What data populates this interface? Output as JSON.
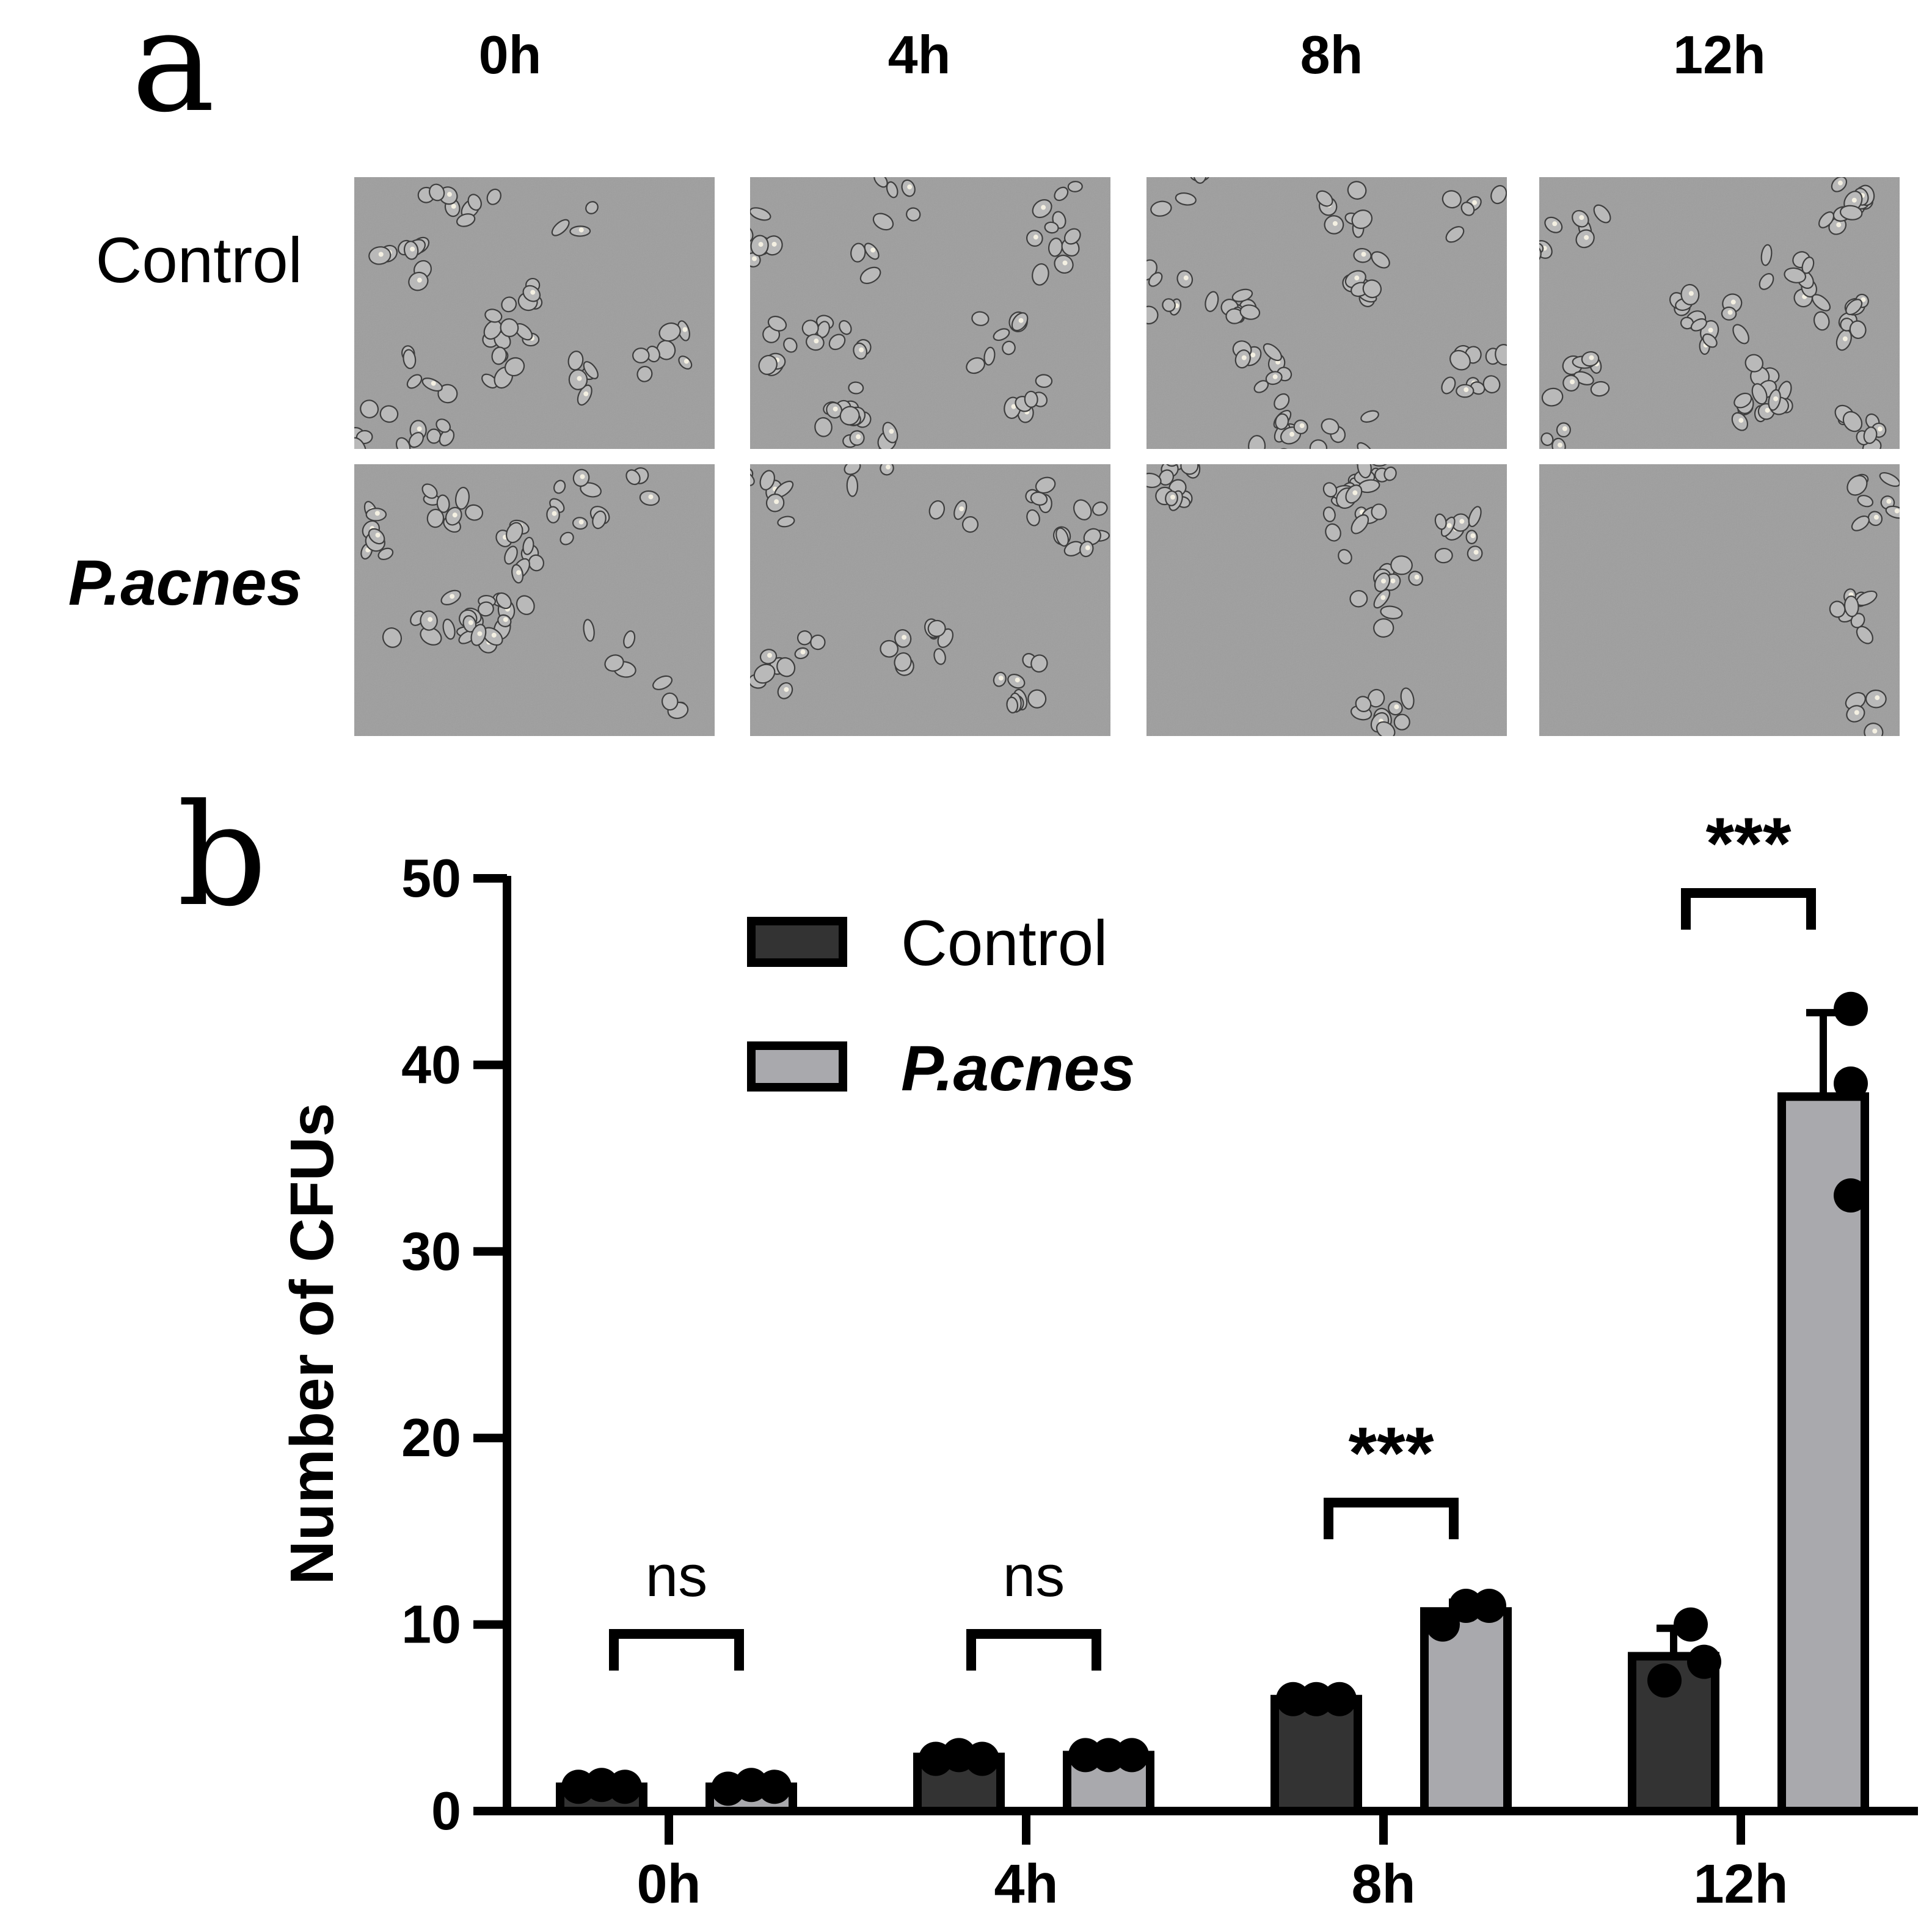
{
  "panel_a": {
    "letter": "a",
    "time_labels": [
      "0h",
      "4h",
      "8h",
      "12h"
    ],
    "row_labels": [
      "Control",
      "P.acnes"
    ],
    "micrographs": [
      {
        "row": "Control",
        "time": "0h",
        "cell_density": 0.55
      },
      {
        "row": "Control",
        "time": "4h",
        "cell_density": 0.55
      },
      {
        "row": "Control",
        "time": "8h",
        "cell_density": 0.55
      },
      {
        "row": "Control",
        "time": "12h",
        "cell_density": 0.65
      },
      {
        "row": "P.acnes",
        "time": "0h",
        "cell_density": 0.55
      },
      {
        "row": "P.acnes",
        "time": "4h",
        "cell_density": 0.45
      },
      {
        "row": "P.acnes",
        "time": "8h",
        "cell_density": 0.45
      },
      {
        "row": "P.acnes",
        "time": "12h",
        "cell_density": 0.12
      }
    ]
  },
  "panel_b": {
    "letter": "b"
  },
  "chart_data": {
    "type": "bar",
    "title": "",
    "xlabel": "",
    "ylabel": "Number of CFUs",
    "ylim": [
      0,
      50
    ],
    "yticks": [
      0,
      10,
      20,
      30,
      40,
      50
    ],
    "categories": [
      "0h",
      "4h",
      "8h",
      "12h"
    ],
    "legend_placement": "top-center",
    "grid": false,
    "series": [
      {
        "name": "Control",
        "color": "#333333",
        "values": [
          1.3,
          2.9,
          6.0,
          8.3
        ],
        "errors": [
          0.2,
          0.2,
          0.1,
          1.5
        ],
        "points": [
          [
            1.3,
            1.4,
            1.3
          ],
          [
            2.8,
            3.0,
            2.8
          ],
          [
            6.0,
            6.0,
            6.0
          ],
          [
            7.0,
            10.0,
            8.0
          ]
        ]
      },
      {
        "name": "P.acnes",
        "color": "#a9a9ad",
        "values": [
          1.3,
          3.0,
          10.7,
          38.3
        ],
        "errors": [
          0.2,
          0.1,
          0.5,
          4.5
        ],
        "points": [
          [
            1.2,
            1.4,
            1.3
          ],
          [
            3.0,
            3.0,
            3.0
          ],
          [
            10.0,
            11.0,
            11.0
          ],
          [
            33.0,
            39.0,
            43.0
          ]
        ]
      }
    ],
    "annotations": [
      "ns",
      "ns",
      "***",
      "***"
    ]
  },
  "colors": {
    "dark_bar": "#333333",
    "light_bar": "#a9a9ad",
    "micrograph_bg": "#9d9d9d"
  }
}
